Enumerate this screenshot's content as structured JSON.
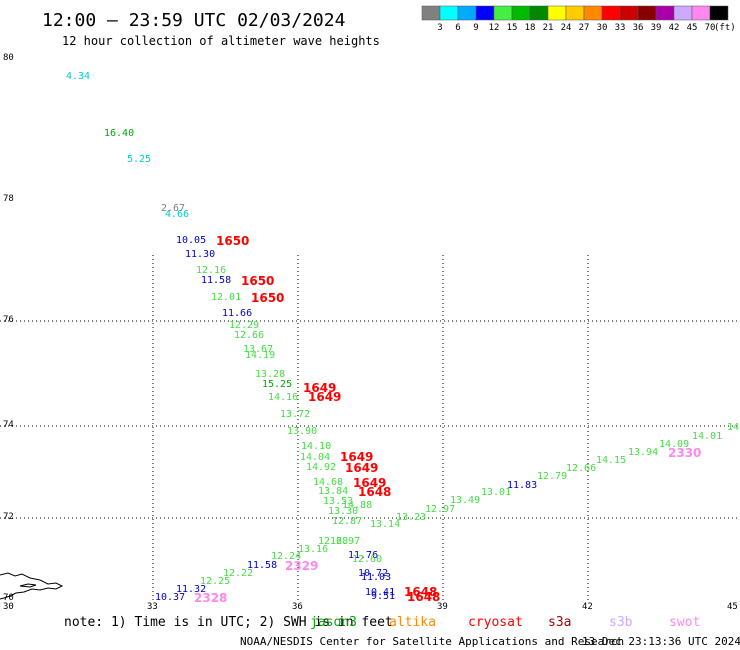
{
  "header": {
    "title": "12:00 – 23:59 UTC 02/03/2024",
    "subtitle": "12 hour collection of altimeter wave heights"
  },
  "legend": {
    "unit": "(ft)",
    "bins": [
      {
        "label": "3",
        "color": "#808080"
      },
      {
        "label": "6",
        "color": "#00ffff"
      },
      {
        "label": "9",
        "color": "#00aaff"
      },
      {
        "label": "12",
        "color": "#0000ff"
      },
      {
        "label": "15",
        "color": "#44ee44"
      },
      {
        "label": "18",
        "color": "#00bb00"
      },
      {
        "label": "21",
        "color": "#008800"
      },
      {
        "label": "24",
        "color": "#ffff00"
      },
      {
        "label": "27",
        "color": "#ffcc00"
      },
      {
        "label": "30",
        "color": "#ff8800"
      },
      {
        "label": "33",
        "color": "#ff0000"
      },
      {
        "label": "36",
        "color": "#cc0000"
      },
      {
        "label": "39",
        "color": "#880000"
      },
      {
        "label": "42",
        "color": "#aa00aa"
      },
      {
        "label": "45",
        "color": "#ccaaff"
      },
      {
        "label": "70",
        "color": "#ff88ee"
      },
      {
        "label": "",
        "color": "#000000"
      }
    ]
  },
  "axes": {
    "lat_labels": [
      "80",
      "78",
      "76",
      "74",
      "72",
      "70"
    ],
    "lon_labels": [
      "30",
      "33",
      "36",
      "39",
      "42",
      "45"
    ]
  },
  "observations": [
    {
      "text": "4.34",
      "color": "#00cccc"
    },
    {
      "text": "16.40",
      "color": "#00aa00"
    },
    {
      "text": "5.25",
      "color": "#00cccc"
    },
    {
      "text": "2.67",
      "color": "#808080"
    },
    {
      "text": "4.66",
      "color": "#00cccc"
    },
    {
      "text": "10.05",
      "color": "#0000cc"
    },
    {
      "text": "11.30",
      "color": "#0000cc"
    },
    {
      "text": "12.16",
      "color": "#44dd44"
    },
    {
      "text": "11.58",
      "color": "#0000cc"
    },
    {
      "text": "12.01",
      "color": "#44dd44"
    },
    {
      "text": "11.66",
      "color": "#0000cc"
    },
    {
      "text": "12.29",
      "color": "#44dd44"
    },
    {
      "text": "12.66",
      "color": "#44dd44"
    },
    {
      "text": "13.67",
      "color": "#44dd44"
    },
    {
      "text": "14.19",
      "color": "#44dd44"
    },
    {
      "text": "13.28",
      "color": "#44dd44"
    },
    {
      "text": "15.25",
      "color": "#00aa00"
    },
    {
      "text": "14.16",
      "color": "#44dd44"
    },
    {
      "text": "13.72",
      "color": "#44dd44"
    },
    {
      "text": "13.90",
      "color": "#44dd44"
    },
    {
      "text": "14.10",
      "color": "#44dd44"
    },
    {
      "text": "14.04",
      "color": "#44dd44"
    },
    {
      "text": "14.92",
      "color": "#44dd44"
    },
    {
      "text": "14.68",
      "color": "#44dd44"
    },
    {
      "text": "13.84",
      "color": "#44dd44"
    },
    {
      "text": "13.53",
      "color": "#44dd44"
    },
    {
      "text": "13.30",
      "color": "#44dd44"
    },
    {
      "text": "12.87",
      "color": "#44dd44"
    },
    {
      "text": "14.88",
      "color": "#44dd44"
    },
    {
      "text": "12.68",
      "color": "#44dd44"
    },
    {
      "text": "12.97",
      "color": "#44dd44"
    },
    {
      "text": "13.14",
      "color": "#44dd44"
    },
    {
      "text": "13.23",
      "color": "#44dd44"
    },
    {
      "text": "12.97",
      "color": "#44dd44"
    },
    {
      "text": "13.49",
      "color": "#44dd44"
    },
    {
      "text": "13.01",
      "color": "#44dd44"
    },
    {
      "text": "11.83",
      "color": "#0000cc"
    },
    {
      "text": "12.79",
      "color": "#44dd44"
    },
    {
      "text": "12.66",
      "color": "#44dd44"
    },
    {
      "text": "14.15",
      "color": "#44dd44"
    },
    {
      "text": "13.94",
      "color": "#44dd44"
    },
    {
      "text": "14.09",
      "color": "#44dd44"
    },
    {
      "text": "14.01",
      "color": "#44dd44"
    },
    {
      "text": "14",
      "color": "#44dd44"
    },
    {
      "text": "13.16",
      "color": "#44dd44"
    },
    {
      "text": "12.24",
      "color": "#44dd44"
    },
    {
      "text": "11.58",
      "color": "#0000cc"
    },
    {
      "text": "12.22",
      "color": "#44dd44"
    },
    {
      "text": "12.25",
      "color": "#44dd44"
    },
    {
      "text": "11.32",
      "color": "#0000cc"
    },
    {
      "text": "10.37",
      "color": "#0000cc"
    },
    {
      "text": "11.76",
      "color": "#0000cc"
    },
    {
      "text": "12.60",
      "color": "#44dd44"
    },
    {
      "text": "10.72",
      "color": "#0000cc"
    },
    {
      "text": "11.03",
      "color": "#0000cc"
    },
    {
      "text": "10.41",
      "color": "#0000cc"
    },
    {
      "text": "9.51",
      "color": "#0000cc"
    }
  ],
  "track_labels": [
    {
      "text": "1650",
      "color": "#ff0000"
    },
    {
      "text": "1650",
      "color": "#ff0000"
    },
    {
      "text": "1650",
      "color": "#ff0000"
    },
    {
      "text": "1649",
      "color": "#ff0000"
    },
    {
      "text": "1649",
      "color": "#ff0000"
    },
    {
      "text": "1649",
      "color": "#ff0000"
    },
    {
      "text": "1649",
      "color": "#ff0000"
    },
    {
      "text": "1649",
      "color": "#ff0000"
    },
    {
      "text": "1648",
      "color": "#ff0000"
    },
    {
      "text": "1648",
      "color": "#ff0000"
    },
    {
      "text": "1648",
      "color": "#ff0000"
    },
    {
      "text": "2330",
      "color": "#ff88ee"
    },
    {
      "text": "2329",
      "color": "#ff88ee"
    },
    {
      "text": "2328",
      "color": "#ff88ee"
    }
  ],
  "note": "note: 1) Time is in UTC; 2) SWH is in feet",
  "satellites": [
    {
      "name": "jason3",
      "color": "#00aa00"
    },
    {
      "name": "altika",
      "color": "#ff8800"
    },
    {
      "name": "cryosat",
      "color": "#ff0000"
    },
    {
      "name": "s3a",
      "color": "#aa0000"
    },
    {
      "name": "s3b",
      "color": "#ccaaff"
    },
    {
      "name": "swot",
      "color": "#ff88ee"
    }
  ],
  "footer": {
    "agency": "NOAA/NESDIS Center for Satellite Applications and Research",
    "timestamp": "13 Dec 23:13:36 UTC 2024"
  }
}
